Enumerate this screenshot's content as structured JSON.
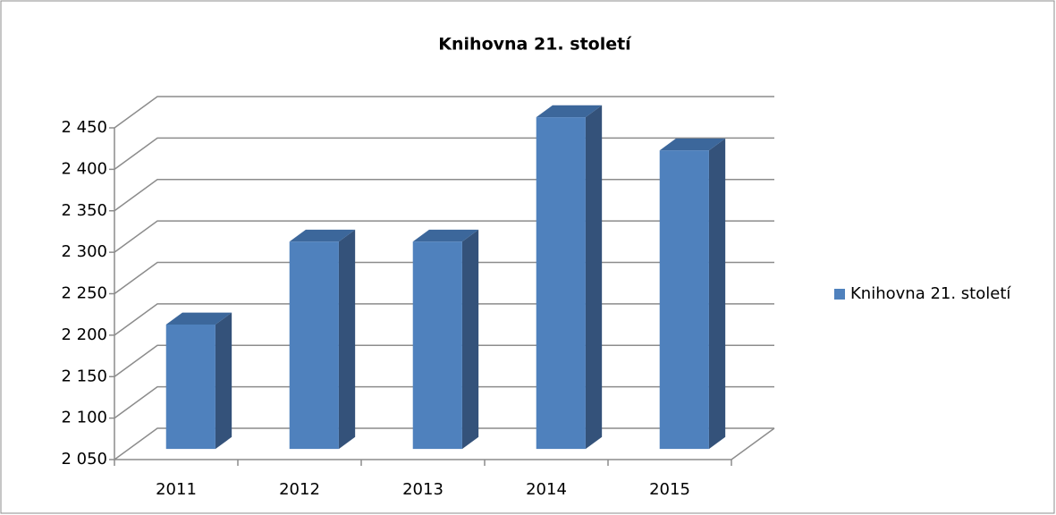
{
  "chart_data": {
    "type": "bar3d",
    "title": "Knihovna 21. století",
    "categories": [
      "2011",
      "2012",
      "2013",
      "2014",
      "2015"
    ],
    "series": [
      {
        "name": "Knihovna 21. století",
        "color": "#4f81bd",
        "values": [
          2200,
          2300,
          2300,
          2450,
          2410
        ]
      }
    ],
    "ylim": [
      2050,
      2450
    ],
    "yticks": [
      {
        "value": 2050,
        "label": "2 050"
      },
      {
        "value": 2100,
        "label": "2 100"
      },
      {
        "value": 2150,
        "label": "2 150"
      },
      {
        "value": 2200,
        "label": "2 200"
      },
      {
        "value": 2250,
        "label": "2 250"
      },
      {
        "value": 2300,
        "label": "2 300"
      },
      {
        "value": 2350,
        "label": "2 350"
      },
      {
        "value": 2400,
        "label": "2 400"
      },
      {
        "value": 2450,
        "label": "2 450"
      }
    ],
    "grid": true,
    "legend": "right"
  }
}
